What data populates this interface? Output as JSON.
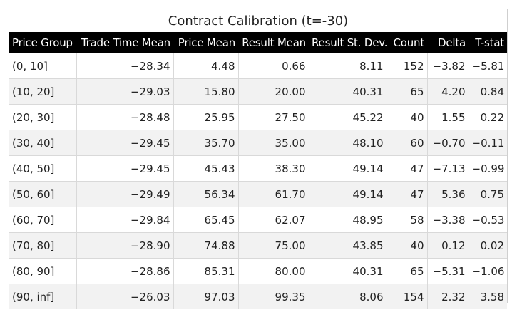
{
  "chart_data": {
    "type": "table",
    "title": "Contract Calibration (t=-30)",
    "columns": [
      "Price Group",
      "Trade Time Mean",
      "Price Mean",
      "Result Mean",
      "Result St. Dev.",
      "Count",
      "Delta",
      "T-stat"
    ],
    "rows": [
      [
        "(0, 10]",
        "−28.34",
        "4.48",
        "0.66",
        "8.11",
        "152",
        "−3.82",
        "−5.81"
      ],
      [
        "(10, 20]",
        "−29.03",
        "15.80",
        "20.00",
        "40.31",
        "65",
        "4.20",
        "0.84"
      ],
      [
        "(20, 30]",
        "−28.48",
        "25.95",
        "27.50",
        "45.22",
        "40",
        "1.55",
        "0.22"
      ],
      [
        "(30, 40]",
        "−29.45",
        "35.70",
        "35.00",
        "48.10",
        "60",
        "−0.70",
        "−0.11"
      ],
      [
        "(40, 50]",
        "−29.45",
        "45.43",
        "38.30",
        "49.14",
        "47",
        "−7.13",
        "−0.99"
      ],
      [
        "(50, 60]",
        "−29.49",
        "56.34",
        "61.70",
        "49.14",
        "47",
        "5.36",
        "0.75"
      ],
      [
        "(60, 70]",
        "−29.84",
        "65.45",
        "62.07",
        "48.95",
        "58",
        "−3.38",
        "−0.53"
      ],
      [
        "(70, 80]",
        "−28.90",
        "74.88",
        "75.00",
        "43.85",
        "40",
        "0.12",
        "0.02"
      ],
      [
        "(80, 90]",
        "−28.86",
        "85.31",
        "80.00",
        "40.31",
        "65",
        "−5.31",
        "−1.06"
      ],
      [
        "(90, inf]",
        "−26.03",
        "97.03",
        "99.35",
        "8.06",
        "154",
        "2.32",
        "3.58"
      ]
    ]
  }
}
